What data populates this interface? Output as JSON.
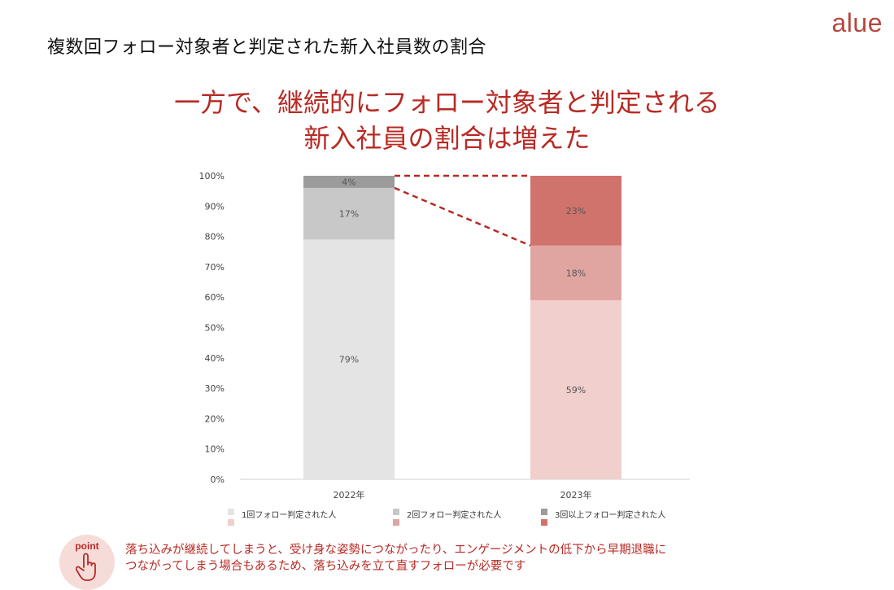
{
  "page": {
    "title": "複数回フォロー対象者と判定された新入社員数の割合",
    "logo": "alue",
    "headline_line1": "一方で、継続的にフォロー対象者と判定される",
    "headline_line2": "新入社員の割合は増えた"
  },
  "colors": {
    "accent": "#b82a24",
    "logo": "#b5473f",
    "grid_axis": "#d0d0d0"
  },
  "chart_data": {
    "type": "bar",
    "stacked": true,
    "categories": [
      "2022年",
      "2023年"
    ],
    "series": [
      {
        "name": "1回フォロー判定された人",
        "values": [
          79,
          59
        ],
        "colors": [
          "#e4e4e4",
          "#f1cfcc"
        ],
        "labels": [
          "79%",
          "59%"
        ]
      },
      {
        "name": "2回フォロー判定された人",
        "values": [
          17,
          18
        ],
        "colors": [
          "#c8c8c8",
          "#e0a5a1"
        ],
        "labels": [
          "17%",
          "18%"
        ]
      },
      {
        "name": "3回以上フォロー判定された人",
        "values": [
          4,
          23
        ],
        "colors": [
          "#9b9b9b",
          "#d0736c"
        ],
        "labels": [
          "4%",
          "23%"
        ]
      }
    ],
    "yticks": [
      "0%",
      "10%",
      "20%",
      "30%",
      "40%",
      "50%",
      "60%",
      "70%",
      "80%",
      "90%",
      "100%"
    ],
    "ylim": [
      0,
      100
    ],
    "legend_position": "bottom",
    "connectors": "dashed red lines linking top and bottom of the 3+ segment between years"
  },
  "note": {
    "badge_label": "point",
    "line1": "落ち込みが継続してしまうと、受け身な姿勢につながったり、エンゲージメントの低下から早期退職に",
    "line2": "つながってしまう場合もあるため、落ち込みを立て直すフォローが必要です"
  }
}
